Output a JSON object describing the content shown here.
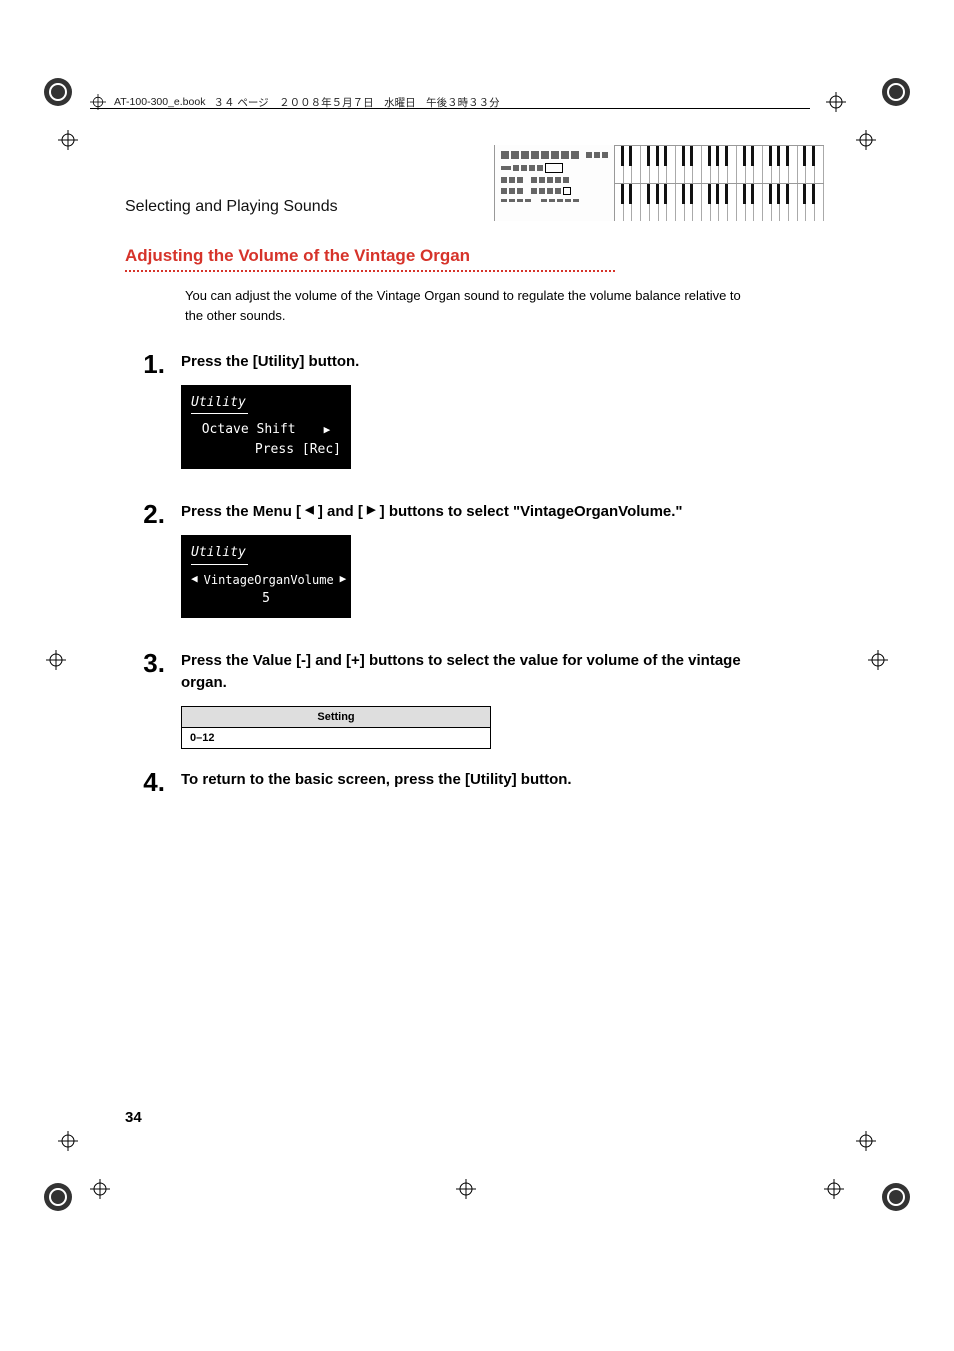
{
  "header": {
    "filename": "AT-100-300_e.book",
    "page_info": "３４ ページ　２００８年５月７日　水曜日　午後３時３３分"
  },
  "section_title": "Selecting and Playing Sounds",
  "subheading": "Adjusting the Volume of the Vintage Organ",
  "intro": "You can adjust the volume of the Vintage Organ sound to regulate the volume balance relative to the other sounds.",
  "steps": [
    {
      "num": "1",
      "text": "Press the [Utility] button.",
      "lcd": {
        "title": "Utility",
        "line1": "Octave Shift",
        "line2": "Press [Rec]",
        "arrows": "right"
      }
    },
    {
      "num": "2",
      "text_parts": [
        "Press the Menu [",
        "] and [",
        "] buttons to select \"VintageOrganVolume.\""
      ],
      "lcd": {
        "title": "Utility",
        "line1": "VintageOrganVolume",
        "line2": "5",
        "arrows": "both"
      }
    },
    {
      "num": "3",
      "text": "Press the Value [-] and [+] buttons to select the value for volume of the vintage organ.",
      "table": {
        "header": "Setting",
        "value": "0–12"
      }
    },
    {
      "num": "4",
      "text": "To return to the basic screen, press the [Utility] button."
    }
  ],
  "page_number": "34",
  "colors": {
    "accent": "#d6332a",
    "text": "#000000",
    "lcd_bg": "#000000",
    "lcd_fg": "#ffffff",
    "table_header_bg": "#dedede"
  }
}
